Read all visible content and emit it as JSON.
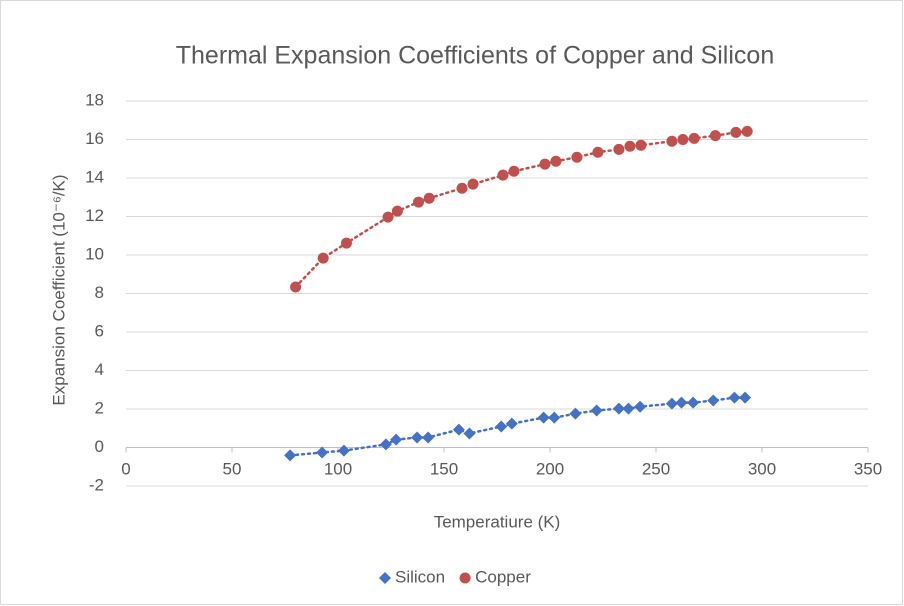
{
  "chart_data": {
    "type": "scatter",
    "title": "Thermal Expansion Coefficients of Copper and Silicon",
    "x_label": "Temperatiure (K)",
    "y_label": "Expansion Coefficient (10⁻⁶/K)",
    "xlim": [
      0,
      350
    ],
    "xticks": [
      0,
      50,
      100,
      150,
      200,
      250,
      300,
      350
    ],
    "ylim": [
      -2,
      18
    ],
    "yticks": [
      -2,
      0,
      2,
      4,
      6,
      8,
      10,
      12,
      14,
      16,
      18
    ],
    "grid": true,
    "legend": "bottom",
    "trendline": true,
    "series": [
      {
        "name": "Silicon",
        "color": "#4472c4",
        "marker": "diamond",
        "x": [
          77.4,
          92.5,
          102.8,
          122.6,
          127.4,
          137.3,
          142.5,
          157,
          162,
          177,
          182,
          197,
          202,
          212,
          222,
          232.5,
          237,
          242.5,
          257.5,
          262,
          267.5,
          277,
          287,
          292
        ],
        "values": [
          -0.41,
          -0.26,
          -0.16,
          0.16,
          0.41,
          0.52,
          0.52,
          0.93,
          0.73,
          1.09,
          1.24,
          1.55,
          1.55,
          1.76,
          1.92,
          2.02,
          2.02,
          2.12,
          2.28,
          2.33,
          2.33,
          2.44,
          2.59,
          2.59
        ]
      },
      {
        "name": "Copper",
        "color": "#c0504d",
        "marker": "circle",
        "x": [
          80,
          93,
          104,
          123.6,
          128,
          138,
          143,
          158.5,
          163.7,
          177.8,
          183,
          197.6,
          202.8,
          212.7,
          222.6,
          232.5,
          237.7,
          242.9,
          257.5,
          262.7,
          268,
          278,
          287.7,
          293
        ],
        "values": [
          8.34,
          9.84,
          10.62,
          11.97,
          12.28,
          12.75,
          12.95,
          13.47,
          13.68,
          14.15,
          14.35,
          14.72,
          14.87,
          15.08,
          15.34,
          15.49,
          15.65,
          15.7,
          15.91,
          16.0,
          16.06,
          16.2,
          16.37,
          16.42
        ]
      }
    ]
  }
}
